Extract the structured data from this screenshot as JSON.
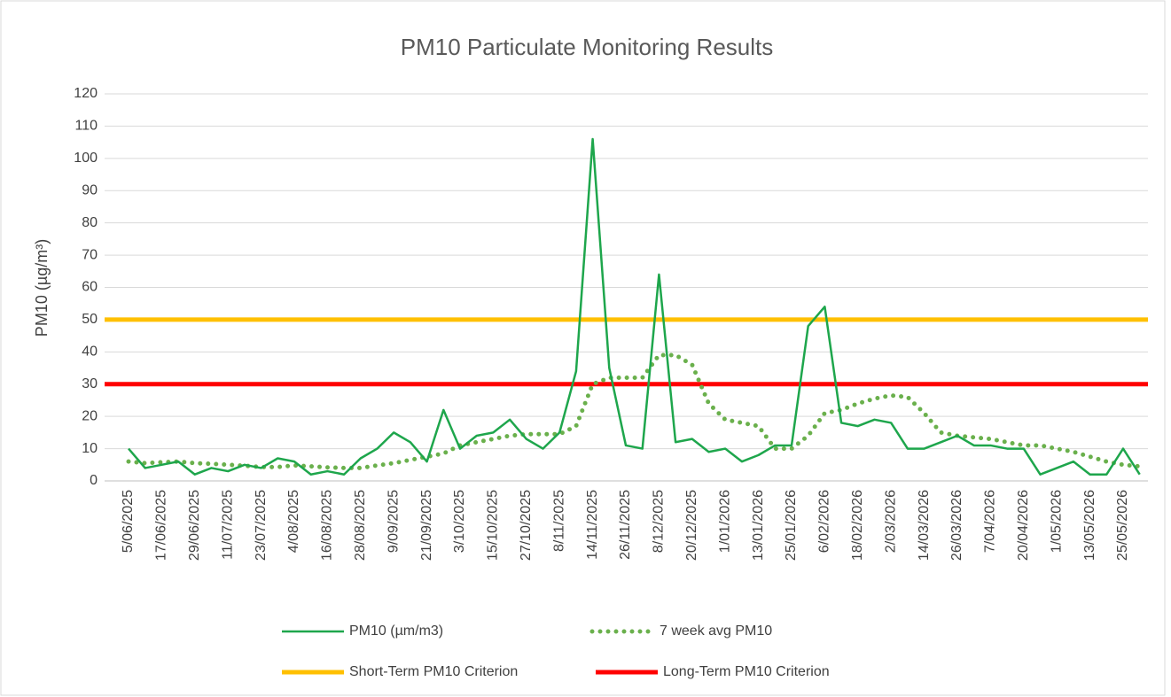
{
  "chart_data": {
    "type": "line",
    "title": "PM10 Particulate Monitoring Results",
    "y_label": "PM10 (µg/m³)",
    "categories": [
      "5/06/2025",
      null,
      "17/06/2025",
      null,
      "29/06/2025",
      null,
      "11/07/2025",
      null,
      "23/07/2025",
      null,
      "4/08/2025",
      null,
      "16/08/2025",
      null,
      "28/08/2025",
      null,
      "9/09/2025",
      null,
      "21/09/2025",
      null,
      "3/10/2025",
      null,
      "15/10/2025",
      null,
      "27/10/2025",
      null,
      "8/11/2025",
      null,
      "14/11/2025",
      null,
      "26/11/2025",
      null,
      "8/12/2025",
      null,
      "20/12/2025",
      null,
      "1/01/2026",
      null,
      "13/01/2026",
      null,
      "25/01/2026",
      null,
      "6/02/2026",
      null,
      "18/02/2026",
      null,
      "2/03/2026",
      null,
      "14/03/2026",
      null,
      "26/03/2026",
      null,
      "7/04/2026",
      null,
      "20/04/2026",
      null,
      "1/05/2026",
      null,
      "13/05/2026",
      null,
      "25/05/2026",
      null
    ],
    "series": [
      {
        "name": "PM10 (µm/m3)",
        "color": "#1ea64c",
        "style": "solid",
        "values": [
          10,
          4,
          5,
          6,
          2,
          4,
          3,
          5,
          4,
          7,
          6,
          2,
          3,
          2,
          7,
          10,
          15,
          12,
          6,
          22,
          10,
          14,
          15,
          19,
          13,
          10,
          15,
          34,
          106,
          35,
          11,
          10,
          64,
          12,
          13,
          9,
          10,
          6,
          8,
          11,
          11,
          48,
          54,
          18,
          17,
          19,
          18,
          10,
          10,
          12,
          14,
          11,
          11,
          10,
          10,
          2,
          4,
          6,
          2,
          2,
          10,
          2
        ]
      },
      {
        "name": "7 week avg PM10",
        "color": "#6ab04c",
        "style": "dotted",
        "values": [
          6,
          5.5,
          5.8,
          6,
          5.5,
          5.3,
          5,
          4.7,
          4.3,
          4.3,
          4.8,
          4.5,
          4.2,
          4,
          4,
          4.8,
          5.5,
          6.5,
          7.5,
          8.5,
          11,
          12,
          13,
          14,
          14.5,
          14.5,
          14.5,
          17,
          30,
          32,
          32,
          32,
          39,
          39,
          36,
          24,
          19,
          18,
          17,
          10,
          10,
          14,
          21,
          22,
          24,
          25.5,
          26.5,
          26,
          21,
          15,
          14,
          13.5,
          13,
          12,
          11,
          11,
          10,
          9,
          7.5,
          6,
          5,
          4.5
        ]
      },
      {
        "name": "Short-Term PM10 Criterion",
        "color": "#ffc000",
        "style": "reference",
        "value": 50
      },
      {
        "name": "Long-Term PM10 Criterion",
        "color": "#ff0000",
        "style": "reference",
        "value": 30
      }
    ],
    "ylim": [
      0,
      120
    ],
    "yticks": [
      0,
      10,
      20,
      30,
      40,
      50,
      60,
      70,
      80,
      90,
      100,
      110,
      120
    ],
    "grid": true,
    "legend": "bottom"
  }
}
